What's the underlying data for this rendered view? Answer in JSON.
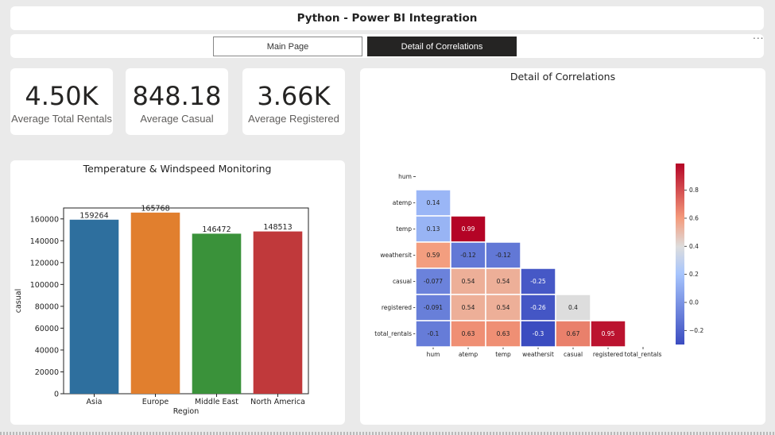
{
  "header": {
    "title": "Python - Power BI Integration"
  },
  "nav": {
    "main_page": "Main Page",
    "detail": "Detail of Correlations",
    "more": "..."
  },
  "kpis": [
    {
      "value": "4.50K",
      "label": "Average Total Rentals"
    },
    {
      "value": "848.18",
      "label": "Average Casual"
    },
    {
      "value": "3.66K",
      "label": "Average Registered"
    }
  ],
  "chart_data": [
    {
      "type": "bar",
      "title": "Temperature & Windspeed Monitoring",
      "xlabel": "Region",
      "ylabel": "casual",
      "categories": [
        "Asia",
        "Europe",
        "Middle East",
        "North America"
      ],
      "values": [
        159264,
        165768,
        146472,
        148513
      ],
      "colors": [
        "#2e6f9e",
        "#e17f2e",
        "#3a923a",
        "#c0393b"
      ],
      "ylim": [
        0,
        170000
      ],
      "yticks": [
        0,
        20000,
        40000,
        60000,
        80000,
        100000,
        120000,
        140000,
        160000
      ]
    },
    {
      "type": "heatmap",
      "title": "Detail of Correlations",
      "labels": [
        "hum",
        "atemp",
        "temp",
        "weathersit",
        "casual",
        "registered",
        "total_rentals"
      ],
      "cells": [
        {
          "row": 1,
          "col": 0,
          "value": 0.14,
          "label": "0.14"
        },
        {
          "row": 2,
          "col": 0,
          "value": 0.13,
          "label": "0.13"
        },
        {
          "row": 2,
          "col": 1,
          "value": 0.99,
          "label": "0.99"
        },
        {
          "row": 3,
          "col": 0,
          "value": 0.59,
          "label": "0.59"
        },
        {
          "row": 3,
          "col": 1,
          "value": -0.12,
          "label": "-0.12"
        },
        {
          "row": 3,
          "col": 2,
          "value": -0.12,
          "label": "-0.12"
        },
        {
          "row": 4,
          "col": 0,
          "value": -0.077,
          "label": "-0.077"
        },
        {
          "row": 4,
          "col": 1,
          "value": 0.54,
          "label": "0.54"
        },
        {
          "row": 4,
          "col": 2,
          "value": 0.54,
          "label": "0.54"
        },
        {
          "row": 4,
          "col": 3,
          "value": -0.25,
          "label": "-0.25"
        },
        {
          "row": 5,
          "col": 0,
          "value": -0.091,
          "label": "-0.091"
        },
        {
          "row": 5,
          "col": 1,
          "value": 0.54,
          "label": "0.54"
        },
        {
          "row": 5,
          "col": 2,
          "value": 0.54,
          "label": "0.54"
        },
        {
          "row": 5,
          "col": 3,
          "value": -0.26,
          "label": "-0.26"
        },
        {
          "row": 5,
          "col": 4,
          "value": 0.4,
          "label": "0.4"
        },
        {
          "row": 6,
          "col": 0,
          "value": -0.1,
          "label": "-0.1"
        },
        {
          "row": 6,
          "col": 1,
          "value": 0.63,
          "label": "0.63"
        },
        {
          "row": 6,
          "col": 2,
          "value": 0.63,
          "label": "0.63"
        },
        {
          "row": 6,
          "col": 3,
          "value": -0.3,
          "label": "-0.3"
        },
        {
          "row": 6,
          "col": 4,
          "value": 0.67,
          "label": "0.67"
        },
        {
          "row": 6,
          "col": 5,
          "value": 0.95,
          "label": "0.95"
        }
      ],
      "colorbar": {
        "range": [
          -0.3,
          0.99
        ],
        "ticks": [
          -0.2,
          0.0,
          0.2,
          0.4,
          0.6,
          0.8
        ],
        "tick_labels": [
          "−0.2",
          "0.0",
          "0.2",
          "0.4",
          "0.6",
          "0.8"
        ]
      }
    }
  ]
}
